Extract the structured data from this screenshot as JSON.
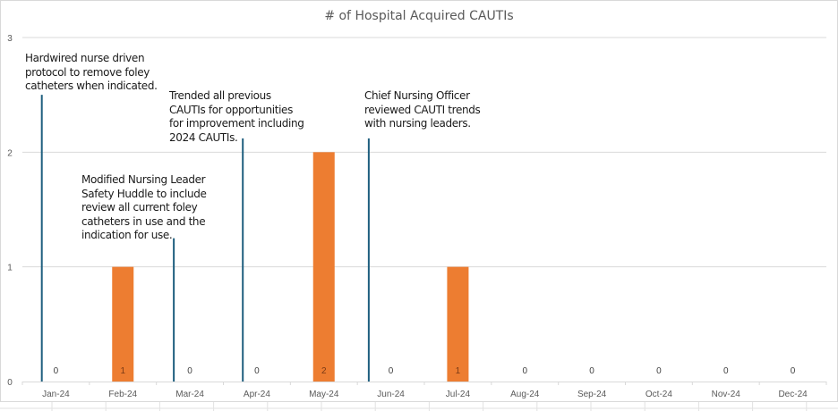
{
  "chart_data": {
    "type": "bar",
    "title": "# of Hospital Acquired CAUTIs",
    "xlabel": "",
    "ylabel": "",
    "ylim": [
      0,
      3
    ],
    "yticks": [
      "0",
      "1",
      "2",
      "3"
    ],
    "grid": true,
    "legend": "none",
    "categories": [
      "Jan-24",
      "Feb-24",
      "Mar-24",
      "Apr-24",
      "May-24",
      "Jun-24",
      "Jul-24",
      "Aug-24",
      "Sep-24",
      "Oct-24",
      "Nov-24",
      "Dec-24"
    ],
    "values": [
      0,
      1,
      0,
      0,
      2,
      0,
      1,
      0,
      0,
      0,
      0,
      0
    ],
    "data_labels": [
      "0",
      "1",
      "0",
      "0",
      "2",
      "0",
      "1",
      "0",
      "0",
      "0",
      "0",
      "0"
    ],
    "bar_color": "#ED7D31",
    "annotation_line_color": "#1F5F7F",
    "annotations": [
      {
        "position_category_index": 0.0,
        "line_top_value": 2.5,
        "text_lines": [
          "Hardwired nurse driven",
          "protocol to remove foley",
          "catheters when indicated."
        ]
      },
      {
        "position_category_index": 1.97,
        "line_top_value": 1.25,
        "text_lines": [
          "Modified Nursing Leader",
          "Safety Huddle to include",
          "review all current foley",
          "catheters in use and the",
          "indication for use."
        ]
      },
      {
        "position_category_index": 3.0,
        "line_top_value": 2.12,
        "text_lines": [
          "Trended all previous",
          "CAUTIs for opportunities",
          "for improvement including",
          "2024 CAUTIs."
        ]
      },
      {
        "position_category_index": 4.88,
        "line_top_value": 2.12,
        "text_lines": [
          "Chief Nursing Officer",
          "reviewed CAUTI trends",
          "with nursing leaders."
        ]
      }
    ]
  }
}
